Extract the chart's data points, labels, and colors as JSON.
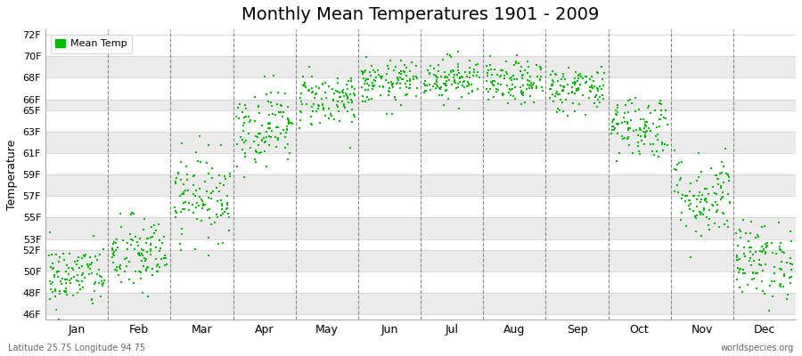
{
  "title": "Monthly Mean Temperatures 1901 - 2009",
  "ylabel": "Temperature",
  "xlabel_months": [
    "Jan",
    "Feb",
    "Mar",
    "Apr",
    "May",
    "Jun",
    "Jul",
    "Aug",
    "Sep",
    "Oct",
    "Nov",
    "Dec"
  ],
  "yticks": [
    46,
    48,
    50,
    52,
    53,
    55,
    57,
    59,
    61,
    63,
    65,
    66,
    68,
    70,
    72
  ],
  "ytick_labels": [
    "46F",
    "48F",
    "50F",
    "52F",
    "53F",
    "55F",
    "57F",
    "59F",
    "61F",
    "63F",
    "65F",
    "66F",
    "68F",
    "70F",
    "72F"
  ],
  "ylim": [
    45.5,
    72.5
  ],
  "dot_color": "#00bb00",
  "dot_size": 4,
  "bg_color": "#ffffff",
  "plot_bg_color": "#ffffff",
  "stripe_color": "#ebebeb",
  "dashed_line_color": "#888888",
  "footnote_left": "Latitude 25.75 Longitude 94.75",
  "footnote_right": "worldspecies.org",
  "legend_label": "Mean Temp",
  "title_fontsize": 14,
  "num_years": 109,
  "monthly_means": [
    49.5,
    51.5,
    57.0,
    63.5,
    66.0,
    67.5,
    68.0,
    67.5,
    67.0,
    63.5,
    57.0,
    51.0
  ],
  "monthly_stds": [
    1.5,
    1.8,
    2.0,
    1.8,
    1.3,
    1.0,
    1.0,
    1.0,
    1.1,
    1.5,
    2.0,
    1.8
  ],
  "seed": 42
}
